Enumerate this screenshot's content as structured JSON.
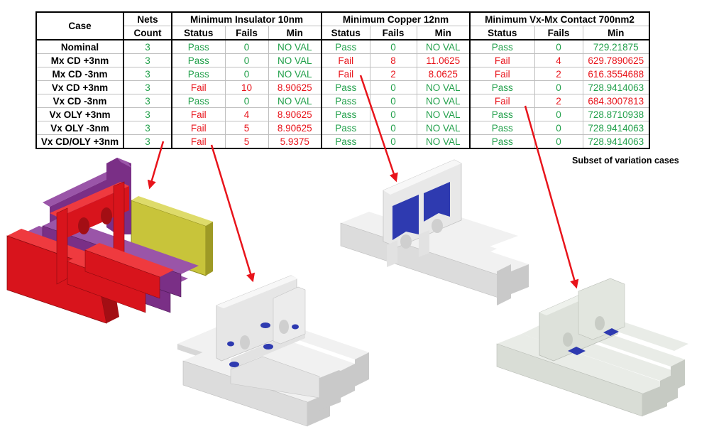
{
  "table": {
    "header_top": [
      "Case",
      "Nets",
      "Minimum Insulator 10nm",
      "Minimum Copper 12nm",
      "Minimum Vx-Mx Contact 700nm2"
    ],
    "header_sub": [
      "Count",
      "Status",
      "Fails",
      "Min",
      "Status",
      "Fails",
      "Min",
      "Status",
      "Fails",
      "Min"
    ],
    "rows": [
      {
        "case": "Nominal",
        "count": "3",
        "ins_status": "Pass",
        "ins_fails": "0",
        "ins_min": "NO VAL",
        "cu_status": "Pass",
        "cu_fails": "0",
        "cu_min": "NO VAL",
        "vx_status": "Pass",
        "vx_fails": "0",
        "vx_min": "729.21875"
      },
      {
        "case": "Mx CD +3nm",
        "count": "3",
        "ins_status": "Pass",
        "ins_fails": "0",
        "ins_min": "NO VAL",
        "cu_status": "Fail",
        "cu_fails": "8",
        "cu_min": "11.0625",
        "vx_status": "Fail",
        "vx_fails": "4",
        "vx_min": "629.7890625"
      },
      {
        "case": "Mx CD -3nm",
        "count": "3",
        "ins_status": "Pass",
        "ins_fails": "0",
        "ins_min": "NO VAL",
        "cu_status": "Fail",
        "cu_fails": "2",
        "cu_min": "8.0625",
        "vx_status": "Fail",
        "vx_fails": "2",
        "vx_min": "616.3554688"
      },
      {
        "case": "Vx CD +3nm",
        "count": "3",
        "ins_status": "Fail",
        "ins_fails": "10",
        "ins_min": "8.90625",
        "cu_status": "Pass",
        "cu_fails": "0",
        "cu_min": "NO VAL",
        "vx_status": "Pass",
        "vx_fails": "0",
        "vx_min": "728.9414063"
      },
      {
        "case": "Vx CD -3nm",
        "count": "3",
        "ins_status": "Pass",
        "ins_fails": "0",
        "ins_min": "NO VAL",
        "cu_status": "Pass",
        "cu_fails": "0",
        "cu_min": "NO VAL",
        "vx_status": "Fail",
        "vx_fails": "2",
        "vx_min": "684.3007813"
      },
      {
        "case": "Vx OLY +3nm",
        "count": "3",
        "ins_status": "Fail",
        "ins_fails": "4",
        "ins_min": "8.90625",
        "cu_status": "Pass",
        "cu_fails": "0",
        "cu_min": "NO VAL",
        "vx_status": "Pass",
        "vx_fails": "0",
        "vx_min": "728.8710938"
      },
      {
        "case": "Vx OLY -3nm",
        "count": "3",
        "ins_status": "Fail",
        "ins_fails": "5",
        "ins_min": "8.90625",
        "cu_status": "Pass",
        "cu_fails": "0",
        "cu_min": "NO VAL",
        "vx_status": "Pass",
        "vx_fails": "0",
        "vx_min": "728.9414063"
      },
      {
        "case": "Vx CD/OLY +3nm",
        "count": "3",
        "ins_status": "Fail",
        "ins_fails": "5",
        "ins_min": "5.9375",
        "cu_status": "Pass",
        "cu_fails": "0",
        "cu_min": "NO VAL",
        "vx_status": "Pass",
        "vx_fails": "0",
        "vx_min": "728.9414063"
      }
    ]
  },
  "caption": "Subset of variation cases",
  "colors": {
    "pass": "#22a04b",
    "fail": "#e8141b",
    "arrow": "#e8141b",
    "net_red": "#d8141c",
    "net_purple": "#7a2f86",
    "net_yellow": "#c8c43a",
    "model_gray": "#e6e6e6",
    "model_gray_green": "#d9ddd6",
    "highlight_blue": "#2e3ab0"
  }
}
